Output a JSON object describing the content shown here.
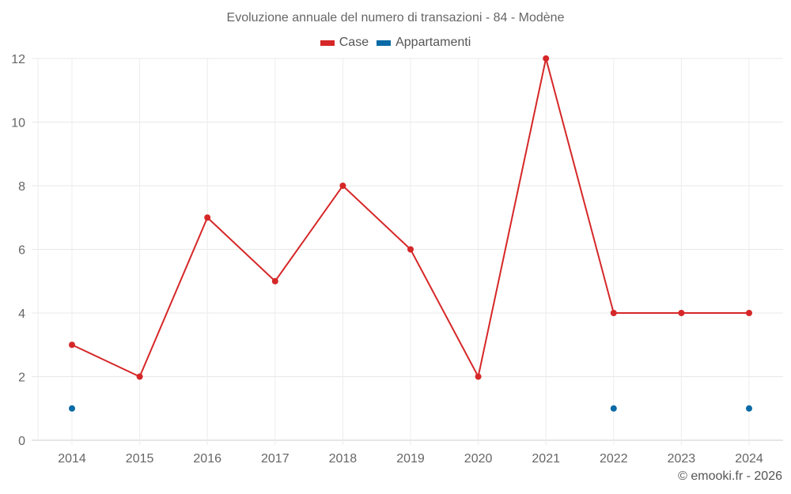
{
  "title": "Evoluzione annuale del numero di transazioni - 84 - Modène",
  "legend": [
    {
      "label": "Case",
      "color": "#d62728"
    },
    {
      "label": "Appartamenti",
      "color": "#0a6aa6"
    }
  ],
  "credit": "© emooki.fr - 2026",
  "chart_data": {
    "type": "line",
    "title": "Evoluzione annuale del numero di transazioni - 84 - Modène",
    "xlabel": "",
    "ylabel": "",
    "categories": [
      "2014",
      "2015",
      "2016",
      "2017",
      "2018",
      "2019",
      "2020",
      "2021",
      "2022",
      "2023",
      "2024"
    ],
    "series": [
      {
        "name": "Case",
        "color": "#d62728",
        "values": [
          3,
          2,
          7,
          5,
          8,
          6,
          2,
          12,
          4,
          4,
          4
        ]
      },
      {
        "name": "Appartamenti",
        "color": "#0a6aa6",
        "values": [
          1,
          null,
          null,
          null,
          null,
          null,
          null,
          null,
          1,
          null,
          1
        ]
      }
    ],
    "yticks": [
      0,
      2,
      4,
      6,
      8,
      10,
      12
    ],
    "ylim": [
      0,
      12
    ],
    "grid": true,
    "legend_position": "top"
  }
}
